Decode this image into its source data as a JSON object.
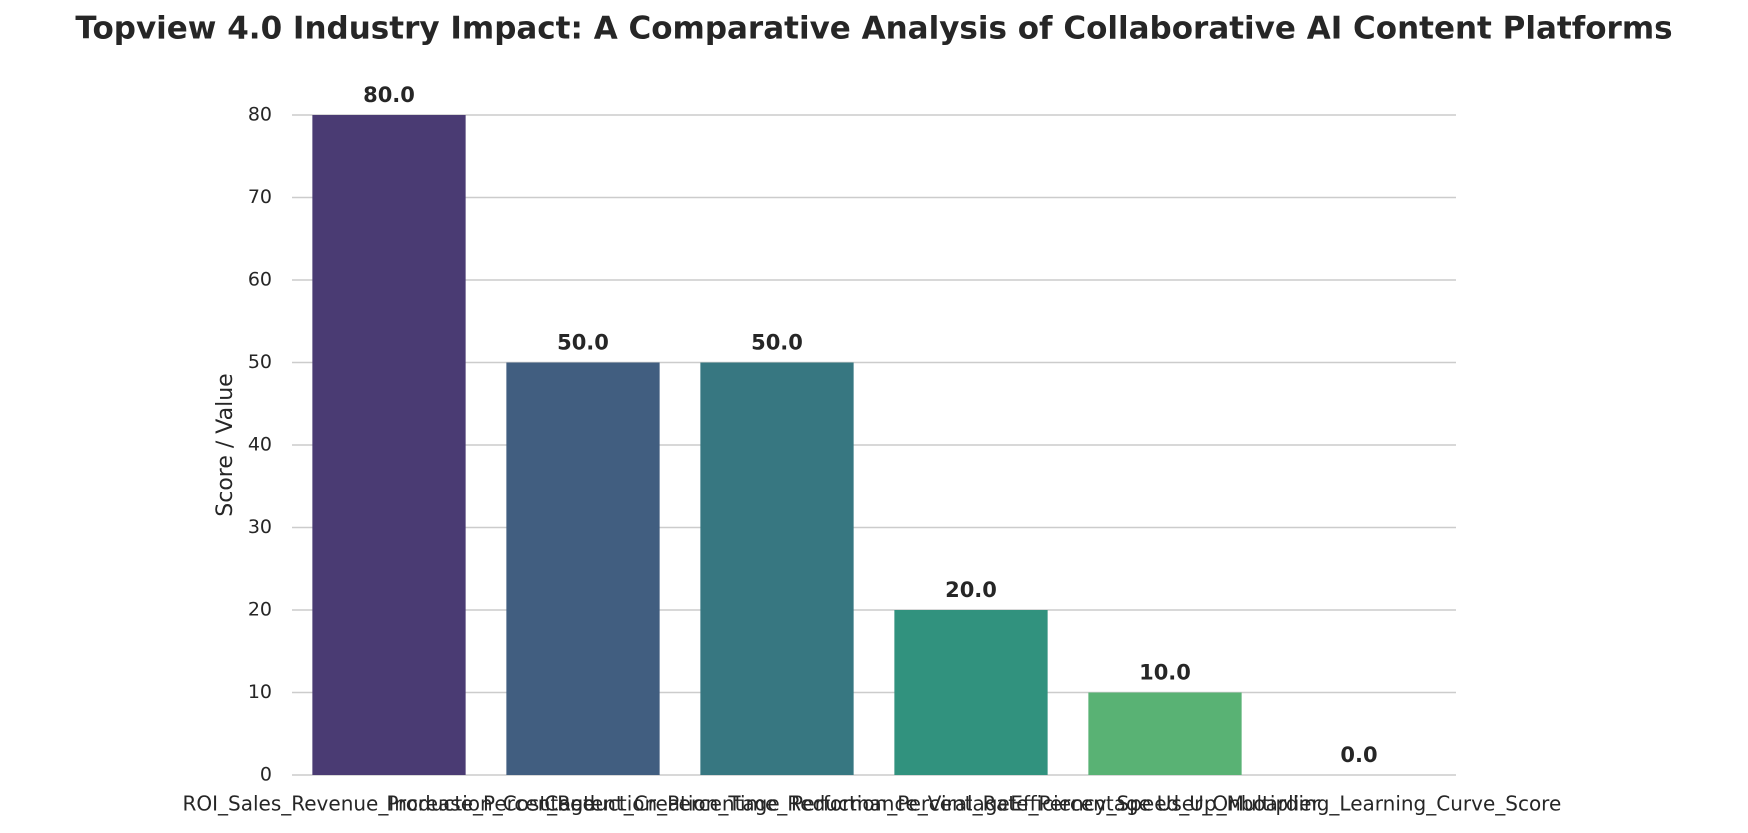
{
  "chart_data": {
    "type": "bar",
    "title": "Topview 4.0 Industry Impact: A Comparative Analysis of Collaborative AI Content Platforms",
    "y_label": "Score / Value",
    "categories": [
      "ROI_Sales_Revenue_Increase_Percentage",
      "Production_Cost_Reduction_Percentage",
      "Content_Creation_Time_Reduction_Percentage",
      "Performance_Viral_Rate_Percentage",
      "Efficiency_Speed_Up_Multiplier",
      "User_Onboarding_Learning_Curve_Score"
    ],
    "values": [
      80,
      50,
      50,
      20,
      10,
      0
    ],
    "value_labels": [
      "80.0",
      "50.0",
      "50.0",
      "20.0",
      "10.0",
      "0.0"
    ],
    "colors": [
      "#4a3b73",
      "#415e80",
      "#377781",
      "#31927e",
      "#59b274",
      "#9fcc5b"
    ],
    "ylim": [
      0,
      84
    ],
    "yticks": [
      0,
      10,
      20,
      30,
      40,
      50,
      60,
      70,
      80
    ],
    "grid": true
  }
}
